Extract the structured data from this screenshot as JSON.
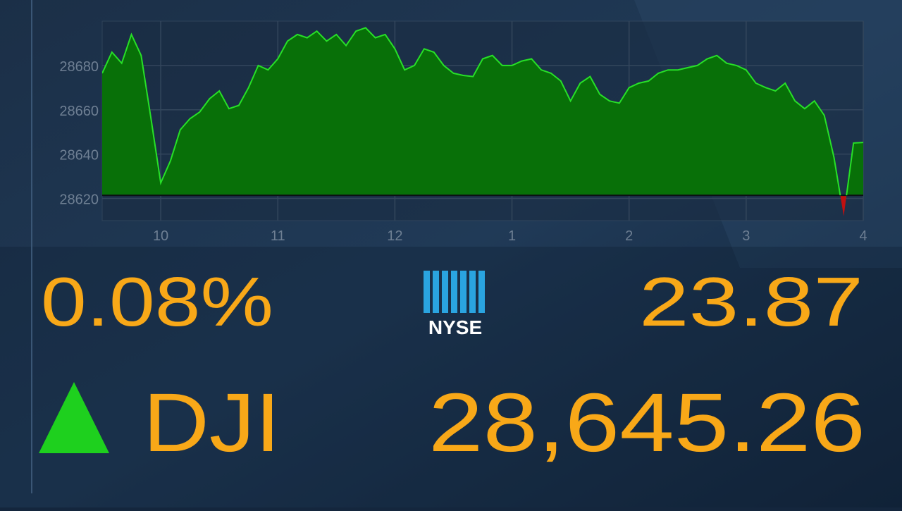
{
  "chart_data": {
    "type": "area",
    "x": [
      9.5,
      9.583,
      9.667,
      9.75,
      9.833,
      9.917,
      10,
      10.083,
      10.167,
      10.25,
      10.333,
      10.417,
      10.5,
      10.583,
      10.667,
      10.75,
      10.833,
      10.917,
      11,
      11.083,
      11.167,
      11.25,
      11.333,
      11.417,
      11.5,
      11.583,
      11.667,
      11.75,
      11.833,
      11.917,
      12,
      12.083,
      12.167,
      12.25,
      12.333,
      12.417,
      12.5,
      12.583,
      12.667,
      12.75,
      12.833,
      12.917,
      13,
      13.083,
      13.167,
      13.25,
      13.333,
      13.417,
      13.5,
      13.583,
      13.667,
      13.75,
      13.833,
      13.917,
      14,
      14.083,
      14.167,
      14.25,
      14.333,
      14.417,
      14.5,
      14.583,
      14.667,
      14.75,
      14.833,
      14.917,
      15,
      15.083,
      15.167,
      15.25,
      15.333,
      15.417,
      15.5,
      15.583,
      15.667,
      15.75,
      15.833,
      15.917,
      16
    ],
    "values": [
      28676.5,
      28686,
      28681,
      28694,
      28684.5,
      28656,
      28627,
      28637,
      28651,
      28656,
      28659,
      28665,
      28668.5,
      28660.5,
      28662,
      28670,
      28680,
      28678,
      28683,
      28691,
      28694,
      28692.5,
      28695.5,
      28691,
      28694,
      28689,
      28695.5,
      28697,
      28692.5,
      28694,
      28687.5,
      28678,
      28680,
      28687.5,
      28686,
      28680,
      28676.5,
      28675.5,
      28675,
      28683,
      28684.5,
      28680,
      28680,
      28682,
      28683,
      28678,
      28676.5,
      28673,
      28664,
      28672,
      28675,
      28667,
      28664,
      28663,
      28670,
      28672,
      28673,
      28676.5,
      28678,
      28678,
      28679,
      28680,
      28683,
      28684.5,
      28681,
      28680,
      28678,
      28672,
      28670,
      28668.5,
      28672,
      28664,
      28660.5,
      28664,
      28657.5,
      28638.5,
      28612,
      28645,
      28645.26
    ],
    "baseline": 28621.39,
    "color": "#27e027",
    "fill_up": "#087008",
    "fill_down": "#c01010",
    "xlim": [
      9.5,
      16
    ],
    "xticks": [
      10,
      11,
      12,
      {
        "value": 13,
        "label": "1"
      },
      {
        "value": 14,
        "label": "2"
      },
      {
        "value": 15,
        "label": "3"
      },
      {
        "value": 16,
        "label": "4"
      }
    ],
    "ylim": [
      28610,
      28700
    ],
    "yticks": [
      28620,
      28640,
      28660,
      28680
    ],
    "grid": true
  },
  "ticker": {
    "change_percent": "0.08%",
    "exchange": "NYSE",
    "change_points": "23.87",
    "symbol": "DJI",
    "last": "28,645.26"
  }
}
